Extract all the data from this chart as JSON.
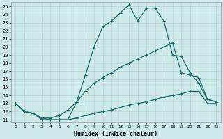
{
  "xlabel": "Humidex (Indice chaleur)",
  "bg_color": "#cce8e8",
  "line_color": "#1a6b6b",
  "grid_color": "#b8d8d8",
  "xlim": [
    -0.5,
    23.5
  ],
  "ylim": [
    10.7,
    25.5
  ],
  "xticks": [
    0,
    1,
    2,
    3,
    4,
    5,
    6,
    7,
    8,
    9,
    10,
    11,
    12,
    13,
    14,
    15,
    16,
    17,
    18,
    19,
    20,
    21,
    22,
    23
  ],
  "yticks": [
    11,
    12,
    13,
    14,
    15,
    16,
    17,
    18,
    19,
    20,
    21,
    22,
    23,
    24,
    25
  ],
  "line1_x": [
    0,
    1,
    2,
    3,
    4,
    5,
    6,
    7,
    8,
    9,
    10,
    11,
    12,
    13,
    14,
    15,
    16,
    17,
    18,
    19,
    20,
    21,
    22,
    23
  ],
  "line1_y": [
    13.0,
    12.0,
    11.8,
    11.0,
    11.0,
    11.0,
    11.0,
    13.2,
    16.5,
    20.0,
    22.5,
    23.2,
    24.2,
    25.2,
    23.2,
    24.8,
    24.8,
    23.2,
    19.0,
    18.8,
    16.8,
    15.5,
    13.5,
    13.2
  ],
  "line2_x": [
    0,
    1,
    2,
    3,
    4,
    5,
    6,
    7,
    8,
    9,
    10,
    11,
    12,
    13,
    14,
    15,
    16,
    17,
    18,
    19,
    20,
    21,
    22,
    23
  ],
  "line2_y": [
    13.0,
    12.0,
    11.8,
    11.2,
    11.2,
    11.5,
    12.2,
    13.2,
    14.5,
    15.5,
    16.2,
    16.8,
    17.5,
    18.0,
    18.5,
    19.0,
    19.5,
    20.0,
    20.5,
    16.8,
    16.5,
    16.2,
    13.5,
    13.2
  ],
  "line3_x": [
    0,
    1,
    2,
    3,
    4,
    5,
    6,
    7,
    8,
    9,
    10,
    11,
    12,
    13,
    14,
    15,
    16,
    17,
    18,
    19,
    20,
    21,
    22,
    23
  ],
  "line3_y": [
    13.0,
    12.0,
    11.8,
    11.2,
    11.0,
    11.0,
    11.0,
    11.2,
    11.5,
    11.8,
    12.0,
    12.2,
    12.5,
    12.8,
    13.0,
    13.2,
    13.5,
    13.8,
    14.0,
    14.2,
    14.5,
    14.5,
    13.0,
    13.0
  ]
}
